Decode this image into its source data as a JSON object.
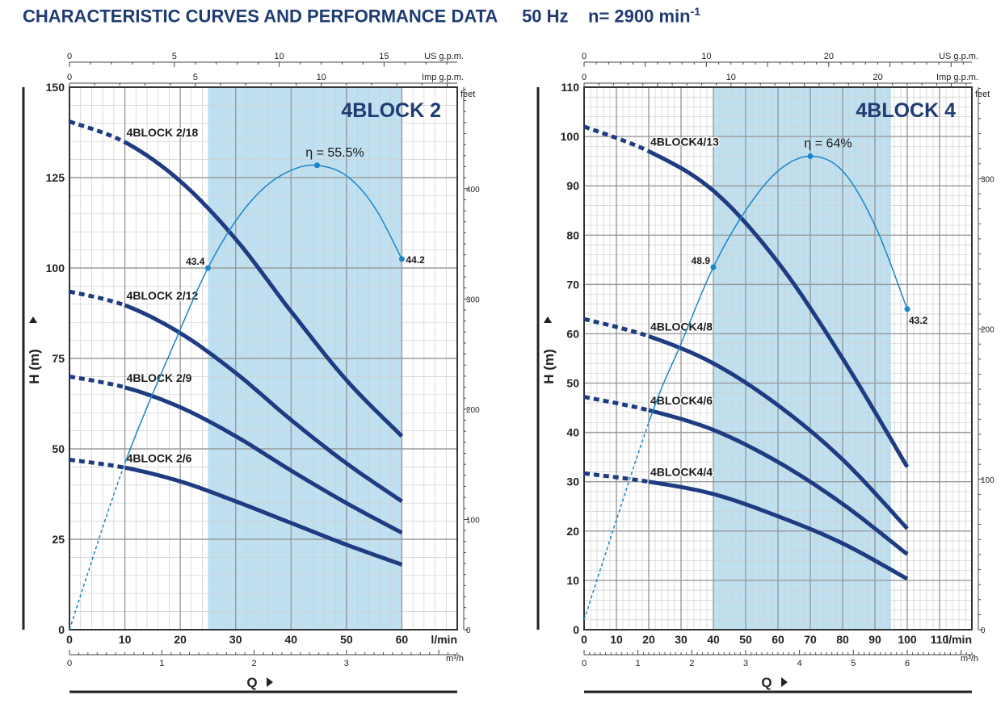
{
  "page": {
    "title": "CHARACTERISTIC CURVES AND PERFORMANCE DATA",
    "freq": "50 Hz",
    "speed": "n= 2900 min",
    "speed_sup": "-1"
  },
  "colors": {
    "curve": "#1f3b82",
    "efficiency": "#1a86c8",
    "band": "#bfe0f0",
    "grid_major": "#9a9a9a",
    "grid_minor": "#cfcfcf",
    "title": "#1f3b73"
  },
  "chart_data": [
    {
      "type": "line",
      "title": "4BLOCK 2",
      "ylabel": "H (m)",
      "xlabel": "Q",
      "x_unit": "l/min",
      "xlim": [
        0,
        70
      ],
      "ylim": [
        0,
        150
      ],
      "x_ticks": [
        0,
        10,
        20,
        30,
        40,
        50,
        60
      ],
      "y_ticks": [
        0,
        25,
        50,
        75,
        100,
        125,
        150
      ],
      "y_tick_labels": [
        "0",
        "25",
        "50",
        "75",
        "100",
        "125",
        "150"
      ],
      "band": [
        25,
        60
      ],
      "feet_axis": {
        "label": "feet",
        "ticks": [
          0,
          100,
          200,
          300,
          400
        ],
        "max": 492.1
      },
      "m3h_axis": {
        "label": "m³/h",
        "ticks": [
          0,
          1,
          2,
          3
        ]
      },
      "usgpm_axis": {
        "label": "US g.p.m.",
        "ticks": [
          0,
          5,
          10,
          15
        ],
        "max": 18.49
      },
      "impgpm_axis": {
        "label": "Imp g.p.m.",
        "ticks": [
          0,
          5,
          10
        ],
        "max": 15.4
      },
      "series": [
        {
          "name": "4BLOCK 2/18",
          "dashed_to": 10,
          "x": [
            0,
            10,
            20,
            30,
            40,
            50,
            60
          ],
          "values": [
            140.5,
            134.8,
            124,
            108,
            88,
            69,
            53.5
          ]
        },
        {
          "name": "4BLOCK 2/12",
          "dashed_to": 10,
          "x": [
            0,
            10,
            20,
            30,
            40,
            50,
            60
          ],
          "values": [
            93.5,
            89.7,
            82,
            71,
            58,
            46,
            35.5
          ]
        },
        {
          "name": "4BLOCK 2/9",
          "dashed_to": 10,
          "x": [
            0,
            10,
            20,
            30,
            40,
            50,
            60
          ],
          "values": [
            70,
            67,
            61.5,
            53.5,
            44,
            35,
            26.8
          ]
        },
        {
          "name": "4BLOCK 2/6",
          "dashed_to": 10,
          "x": [
            0,
            10,
            20,
            30,
            40,
            50,
            60
          ],
          "values": [
            47,
            44.8,
            41,
            35.5,
            29.5,
            23.5,
            18
          ]
        }
      ],
      "efficiency": {
        "label": "η = 55.5%",
        "dashed_to": 10,
        "x": [
          0,
          10,
          20,
          25,
          30,
          35,
          40,
          44.7,
          50,
          55,
          60
        ],
        "y": [
          0,
          46,
          83,
          100,
          113,
          122,
          127,
          128.4,
          125.5,
          117,
          102.5
        ],
        "points": [
          {
            "label": "43.4",
            "x": 25,
            "y": 100,
            "side": "left"
          },
          {
            "label": "",
            "x": 44.7,
            "y": 128.4,
            "side": "none"
          },
          {
            "label": "44.2",
            "x": 60,
            "y": 102.5,
            "side": "right"
          }
        ]
      }
    },
    {
      "type": "line",
      "title": "4BLOCK 4",
      "ylabel": "H (m)",
      "xlabel": "Q",
      "x_unit": "l/min",
      "xlim": [
        0,
        120
      ],
      "ylim": [
        0,
        110
      ],
      "x_ticks": [
        0,
        10,
        20,
        30,
        40,
        50,
        60,
        70,
        80,
        90,
        100,
        110
      ],
      "y_ticks": [
        0,
        10,
        20,
        30,
        40,
        50,
        60,
        70,
        80,
        90,
        100,
        110
      ],
      "y_tick_labels": [
        "0",
        "10",
        "20",
        "30",
        "40",
        "50",
        "60",
        "70",
        "80",
        "90",
        "100",
        "110"
      ],
      "band": [
        40,
        95
      ],
      "feet_axis": {
        "label": "feet",
        "ticks": [
          0,
          100,
          200,
          300
        ],
        "max": 360.9
      },
      "m3h_axis": {
        "label": "m³/h",
        "ticks": [
          0,
          1,
          2,
          3,
          4,
          5,
          6
        ]
      },
      "usgpm_axis": {
        "label": "US g.p.m.",
        "ticks": [
          0,
          10,
          20
        ],
        "max": 31.7
      },
      "impgpm_axis": {
        "label": "Imp g.p.m.",
        "ticks": [
          0,
          10,
          20
        ],
        "max": 26.4
      },
      "series": [
        {
          "name": "4BLOCK4/13",
          "dashed_to": 20,
          "x": [
            0,
            20,
            40,
            60,
            80,
            100
          ],
          "values": [
            102,
            97,
            89,
            74.5,
            55,
            33
          ]
        },
        {
          "name": "4BLOCK4/8",
          "dashed_to": 20,
          "x": [
            0,
            20,
            40,
            60,
            80,
            100
          ],
          "values": [
            63,
            59.5,
            54,
            45.5,
            34.5,
            20.5
          ]
        },
        {
          "name": "4BLOCK4/6",
          "dashed_to": 20,
          "x": [
            0,
            20,
            40,
            60,
            80,
            100
          ],
          "values": [
            47.2,
            44.5,
            40.5,
            34,
            25.5,
            15.3
          ]
        },
        {
          "name": "4BLOCK4/4",
          "dashed_to": 20,
          "x": [
            0,
            20,
            40,
            60,
            80,
            100
          ],
          "values": [
            31.7,
            30,
            27.5,
            23,
            17.5,
            10.3
          ]
        }
      ],
      "efficiency": {
        "label": "η = 64%",
        "dashed_to": 20,
        "x": [
          0,
          20,
          30,
          40,
          50,
          60,
          70,
          80,
          90,
          100
        ],
        "y": [
          2,
          42,
          58,
          73.5,
          85,
          93,
          96,
          93,
          82,
          65
        ],
        "points": [
          {
            "label": "48.9",
            "x": 40,
            "y": 73.5,
            "side": "left"
          },
          {
            "label": "",
            "x": 70,
            "y": 96,
            "side": "none"
          },
          {
            "label": "43.2",
            "x": 100,
            "y": 65,
            "side": "below"
          }
        ]
      }
    }
  ]
}
